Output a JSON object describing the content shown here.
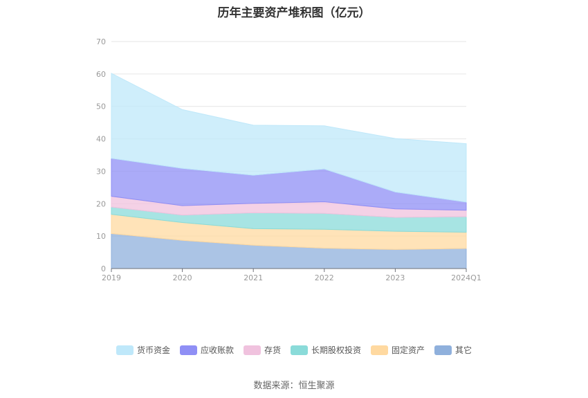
{
  "title": "历年主要资产堆积图（亿元）",
  "source": "数据来源：恒生聚源",
  "chart_data": {
    "type": "area",
    "stacked": true,
    "title": "历年主要资产堆积图（亿元）",
    "categories": [
      "2019",
      "2020",
      "2021",
      "2022",
      "2023",
      "2024Q1"
    ],
    "ylim": [
      0,
      70
    ],
    "yticks": [
      0,
      10,
      20,
      30,
      40,
      50,
      60,
      70
    ],
    "grid": true,
    "legend_position": "bottom",
    "series": [
      {
        "name": "其它",
        "color": "#8fb0dc",
        "values": [
          10.8,
          8.7,
          7.2,
          6.3,
          5.9,
          6.2
        ]
      },
      {
        "name": "固定资产",
        "color": "#ffd9a0",
        "values": [
          5.9,
          5.5,
          5.1,
          5.8,
          5.6,
          5.0
        ]
      },
      {
        "name": "长期股权投资",
        "color": "#8adbd9",
        "values": [
          2.3,
          2.3,
          4.9,
          4.9,
          4.3,
          4.8
        ]
      },
      {
        "name": "存货",
        "color": "#f0c2de",
        "values": [
          3.3,
          2.9,
          2.9,
          3.6,
          2.6,
          2.0
        ]
      },
      {
        "name": "应收账款",
        "color": "#8f8ff5",
        "values": [
          11.7,
          11.5,
          8.7,
          10.1,
          5.2,
          2.5
        ]
      },
      {
        "name": "货币资金",
        "color": "#bfe8fa",
        "values": [
          26.2,
          18.1,
          15.4,
          13.3,
          16.5,
          18.0
        ]
      }
    ]
  }
}
